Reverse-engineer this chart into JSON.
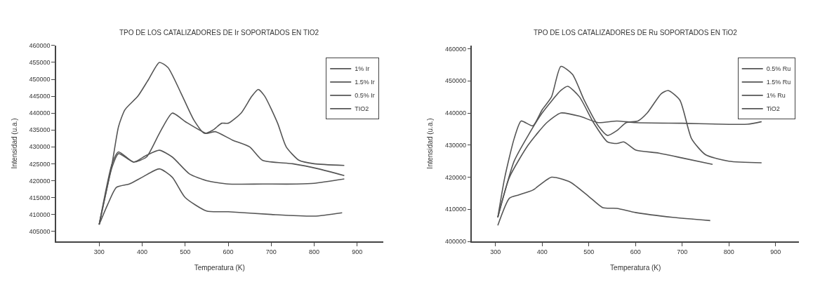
{
  "chart_data": [
    {
      "type": "line",
      "title": "TPO DE LOS CATALIZADORES DE Ir SOPORTADOS EN TIO2",
      "xlabel": "Temperatura (K)",
      "ylabel": "Intensidad (u.a.)",
      "xlim": [
        200,
        960
      ],
      "xticks": [
        300,
        400,
        500,
        600,
        700,
        800,
        900
      ],
      "ylim": [
        402000,
        460000
      ],
      "yticks": [
        405000,
        410000,
        415000,
        420000,
        425000,
        430000,
        435000,
        440000,
        445000,
        450000,
        455000,
        460000
      ],
      "legend": "top right",
      "marker": "none",
      "line_style": "solid",
      "series": [
        {
          "name": "1% Ir",
          "color": "#555555",
          "x": [
            300,
            330,
            345,
            360,
            390,
            415,
            440,
            460,
            490,
            520,
            545,
            565,
            585,
            600,
            630,
            655,
            670,
            685,
            715,
            735,
            765,
            800,
            870
          ],
          "values": [
            407000,
            425000,
            436000,
            441000,
            445000,
            450000,
            455000,
            453500,
            446000,
            438000,
            434000,
            435000,
            437000,
            437000,
            440000,
            445000,
            447000,
            445000,
            437000,
            430000,
            426000,
            425000,
            424500
          ]
        },
        {
          "name": "1.5% Ir",
          "color": "#555555",
          "x": [
            300,
            330,
            345,
            380,
            410,
            440,
            470,
            500,
            550,
            570,
            610,
            650,
            680,
            750,
            810,
            870
          ],
          "values": [
            407000,
            424000,
            428000,
            425500,
            427000,
            434000,
            440000,
            437500,
            434000,
            434500,
            432000,
            430000,
            426000,
            425000,
            423500,
            421500
          ]
        },
        {
          "name": "0.5% Ir",
          "color": "#555555",
          "x": [
            300,
            330,
            345,
            380,
            410,
            440,
            470,
            510,
            550,
            600,
            680,
            760,
            800,
            870
          ],
          "values": [
            407000,
            425000,
            428500,
            425500,
            427500,
            429000,
            427000,
            422000,
            420000,
            419000,
            419000,
            419000,
            419200,
            420500
          ]
        },
        {
          "name": "TIO2",
          "color": "#555555",
          "x": [
            300,
            320,
            340,
            370,
            400,
            440,
            470,
            500,
            550,
            600,
            700,
            800,
            865
          ],
          "values": [
            407000,
            413000,
            418000,
            419000,
            421000,
            423500,
            421000,
            415000,
            411000,
            410800,
            410000,
            409500,
            410500
          ]
        }
      ]
    },
    {
      "type": "line",
      "title": "TPO DE LOS CATALIZADORES DE Ru SOPORTADOS EN TiO2",
      "xlabel": "Temperatura (K)",
      "ylabel": "Intensidad (u.a.)",
      "xlim": [
        250,
        950
      ],
      "xticks": [
        300,
        400,
        500,
        600,
        700,
        800,
        900
      ],
      "ylim": [
        400000,
        461000
      ],
      "yticks": [
        400000,
        410000,
        420000,
        430000,
        440000,
        450000,
        460000
      ],
      "legend": "top right",
      "marker": "none",
      "line_style": "solid",
      "series": [
        {
          "name": "0.5% Ru",
          "color": "#555555",
          "x": [
            305,
            320,
            340,
            355,
            380,
            400,
            420,
            440,
            465,
            490,
            520,
            540,
            560,
            580,
            605,
            625,
            655,
            670,
            695,
            720,
            750,
            800,
            870
          ],
          "values": [
            407500,
            420000,
            432000,
            437500,
            436000,
            441000,
            445000,
            454500,
            452000,
            444000,
            436000,
            433000,
            434500,
            437000,
            437500,
            440000,
            446000,
            447000,
            444000,
            432000,
            427000,
            425000,
            424500
          ]
        },
        {
          "name": "1.5% Ru",
          "color": "#555555",
          "x": [
            305,
            340,
            370,
            400,
            440,
            455,
            480,
            510,
            540,
            560,
            575,
            600,
            650,
            700,
            765
          ],
          "values": [
            407500,
            425000,
            433000,
            440000,
            447000,
            448300,
            445000,
            437000,
            431000,
            430500,
            431000,
            428500,
            427500,
            426000,
            424000
          ]
        },
        {
          "name": "1% Ru",
          "color": "#555555",
          "x": [
            305,
            330,
            370,
            410,
            440,
            480,
            520,
            560,
            600,
            700,
            840,
            870
          ],
          "values": [
            407500,
            420000,
            430000,
            437000,
            440000,
            439000,
            437000,
            437500,
            437000,
            436800,
            436500,
            437300
          ]
        },
        {
          "name": "TiO2",
          "color": "#555555",
          "x": [
            305,
            330,
            350,
            380,
            420,
            460,
            500,
            530,
            560,
            600,
            680,
            760
          ],
          "values": [
            405000,
            413500,
            414500,
            416000,
            420000,
            418500,
            414000,
            410500,
            410300,
            409000,
            407500,
            406500
          ]
        }
      ]
    }
  ]
}
